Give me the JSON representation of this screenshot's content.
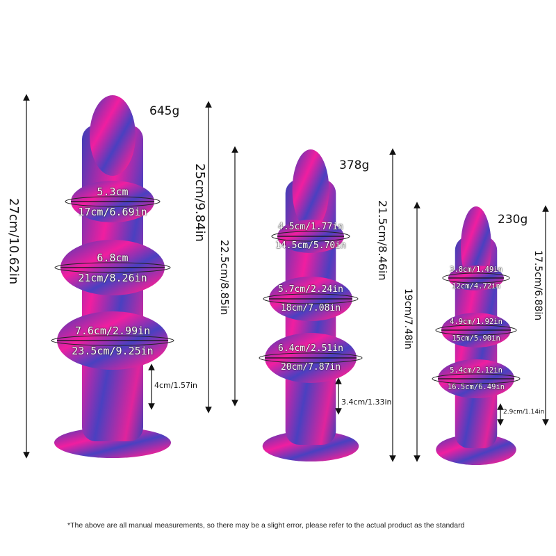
{
  "colors": {
    "pink": "#f01ea0",
    "blue": "#3a3fb8",
    "purple": "#6a2fb0"
  },
  "products": [
    {
      "weight": "645g",
      "total_length": "27cm/10.62in",
      "length_2": "25cm/9.84in",
      "length_3": "22.5cm/8.85in",
      "beads": [
        {
          "diameter": "5.3cm",
          "circumference": "17cm/6.69in"
        },
        {
          "diameter": "6.8cm",
          "circumference": "21cm/8.26in"
        },
        {
          "diameter": "7.6cm/2.99in",
          "circumference": "23.5cm/9.25in"
        }
      ],
      "base_gap": "4cm/1.57in"
    },
    {
      "weight": "378g",
      "total_length": "21.5cm/8.46in",
      "length_2": "19cm/7.48in",
      "beads": [
        {
          "diameter": "4.5cm/1.77in",
          "circumference": "14.5cm/5.70in"
        },
        {
          "diameter": "5.7cm/2.24in",
          "circumference": "18cm/7.08in"
        },
        {
          "diameter": "6.4cm/2.51in",
          "circumference": "20cm/7.87in"
        }
      ],
      "base_gap": "3.4cm/1.33in"
    },
    {
      "weight": "230g",
      "total_length": "17.5cm/6.88in",
      "beads": [
        {
          "diameter": "3.8cm/1.49in",
          "circumference": "12cm/4.72in"
        },
        {
          "diameter": "4.9cm/1.92in",
          "circumference": "15cm/5.90in"
        },
        {
          "diameter": "5.4cm/2.12in",
          "circumference": "16.5cm/6.49in"
        }
      ],
      "base_gap": "2.9cm/1.14in"
    }
  ],
  "footnote": "*The above are all manual measurements, so there may be a slight error, please refer to the actual product as the standard"
}
